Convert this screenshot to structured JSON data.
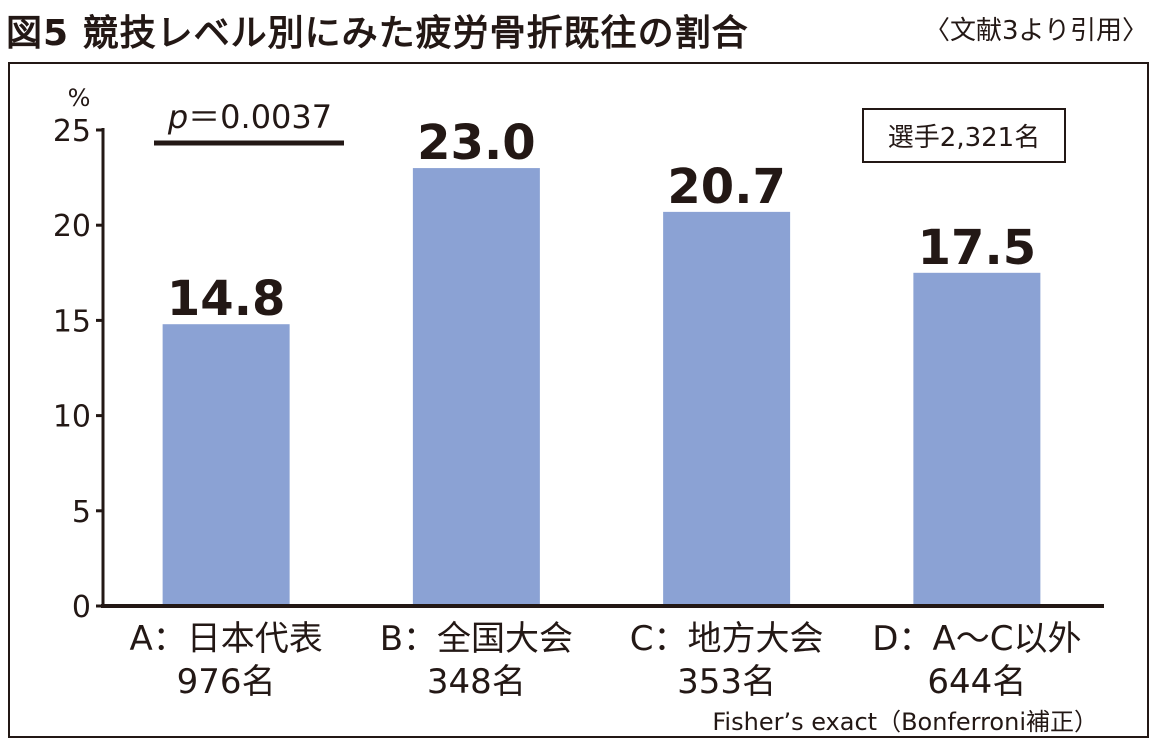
{
  "figure": {
    "title": "図5 競技レベル別にみた疲労骨折既往の割合",
    "source_note": "〈文献3より引用〉"
  },
  "chart_data": {
    "type": "bar",
    "title": "図5 競技レベル別にみた疲労骨折既往の割合",
    "ylabel": "%",
    "xlabel": "",
    "ylim": [
      0,
      25
    ],
    "yticks": [
      "0",
      "5",
      "10",
      "15",
      "20",
      "25"
    ],
    "grid": false,
    "categories": [
      {
        "label": "A：日本代表",
        "count": "976名"
      },
      {
        "label": "B：全国大会",
        "count": "348名"
      },
      {
        "label": "C：地方大会",
        "count": "353名"
      },
      {
        "label": "D：A〜C以外",
        "count": "644名"
      }
    ],
    "values": [
      14.8,
      23.0,
      20.7,
      17.5
    ],
    "value_labels": [
      "14.8",
      "23.0",
      "20.7",
      "17.5"
    ],
    "bar_color": "#8ba2d4",
    "annotations": {
      "p_value": {
        "p": "p",
        "text": "＝0.0037"
      },
      "sample_box": "選手2,321名",
      "footnote": "Fisher’s exact（Bonferroni補正）"
    }
  }
}
